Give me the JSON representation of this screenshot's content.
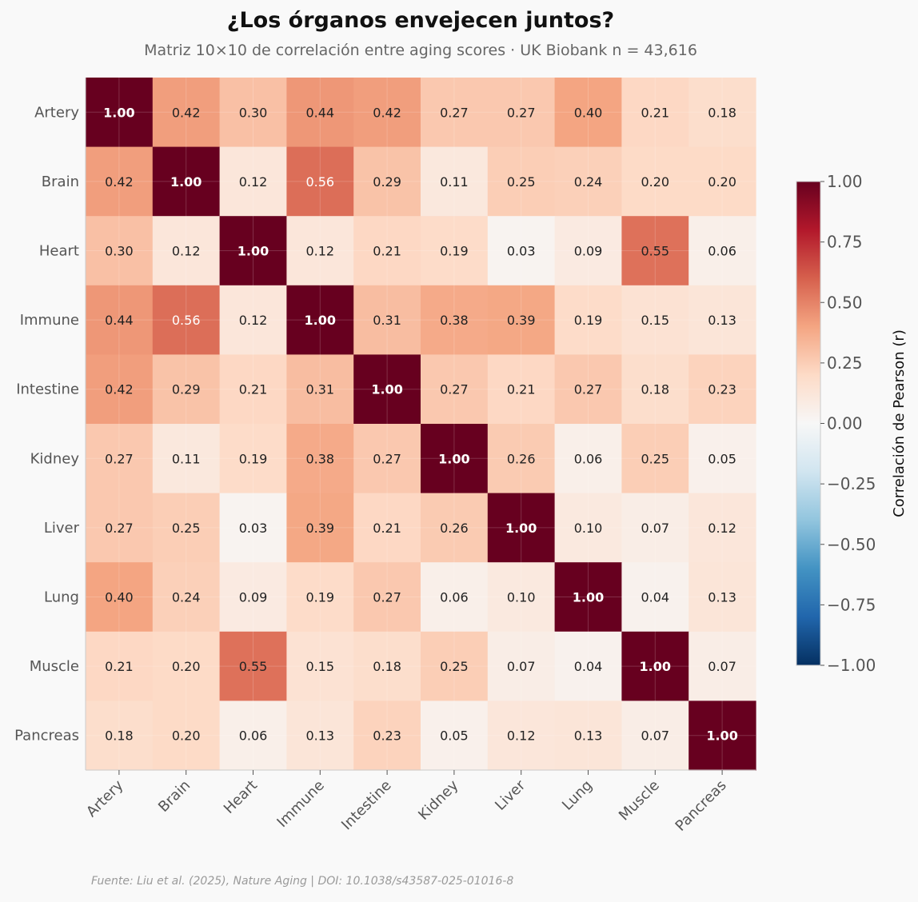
{
  "title": "¿Los órganos envejecen juntos?",
  "subtitle": "Matriz 10×10 de correlación entre aging scores · UK Biobank n = 43,616",
  "footer": "Fuente: Liu et al. (2025), Nature Aging | DOI: 10.1038/s43587-025-01016-8",
  "chart_data": {
    "type": "heatmap",
    "title": "¿Los órganos envejecen juntos?",
    "subtitle": "Matriz 10×10 de correlación entre aging scores · UK Biobank n = 43,616",
    "rows": [
      "Artery",
      "Brain",
      "Heart",
      "Immune",
      "Intestine",
      "Kidney",
      "Liver",
      "Lung",
      "Muscle",
      "Pancreas"
    ],
    "columns": [
      "Artery",
      "Brain",
      "Heart",
      "Immune",
      "Intestine",
      "Kidney",
      "Liver",
      "Lung",
      "Muscle",
      "Pancreas"
    ],
    "values": [
      [
        1.0,
        0.42,
        0.3,
        0.44,
        0.42,
        0.27,
        0.27,
        0.4,
        0.21,
        0.18
      ],
      [
        0.42,
        1.0,
        0.12,
        0.56,
        0.29,
        0.11,
        0.25,
        0.24,
        0.2,
        0.2
      ],
      [
        0.3,
        0.12,
        1.0,
        0.12,
        0.21,
        0.19,
        0.03,
        0.09,
        0.55,
        0.06
      ],
      [
        0.44,
        0.56,
        0.12,
        1.0,
        0.31,
        0.38,
        0.39,
        0.19,
        0.15,
        0.13
      ],
      [
        0.42,
        0.29,
        0.21,
        0.31,
        1.0,
        0.27,
        0.21,
        0.27,
        0.18,
        0.23
      ],
      [
        0.27,
        0.11,
        0.19,
        0.38,
        0.27,
        1.0,
        0.26,
        0.06,
        0.25,
        0.05
      ],
      [
        0.27,
        0.25,
        0.03,
        0.39,
        0.21,
        0.26,
        1.0,
        0.1,
        0.07,
        0.12
      ],
      [
        0.4,
        0.24,
        0.09,
        0.19,
        0.27,
        0.06,
        0.1,
        1.0,
        0.04,
        0.13
      ],
      [
        0.21,
        0.2,
        0.55,
        0.15,
        0.18,
        0.25,
        0.07,
        0.04,
        1.0,
        0.07
      ],
      [
        0.18,
        0.2,
        0.06,
        0.13,
        0.23,
        0.05,
        0.12,
        0.13,
        0.07,
        1.0
      ]
    ],
    "colorscale": "RdBu_r",
    "vmin": -1.0,
    "vmax": 1.0,
    "colorbar": {
      "label": "Correlación de Pearson (r)",
      "ticks": [
        "1.00",
        "0.75",
        "0.50",
        "0.25",
        "0.00",
        "−0.25",
        "−0.50",
        "−0.75",
        "−1.00"
      ]
    }
  }
}
